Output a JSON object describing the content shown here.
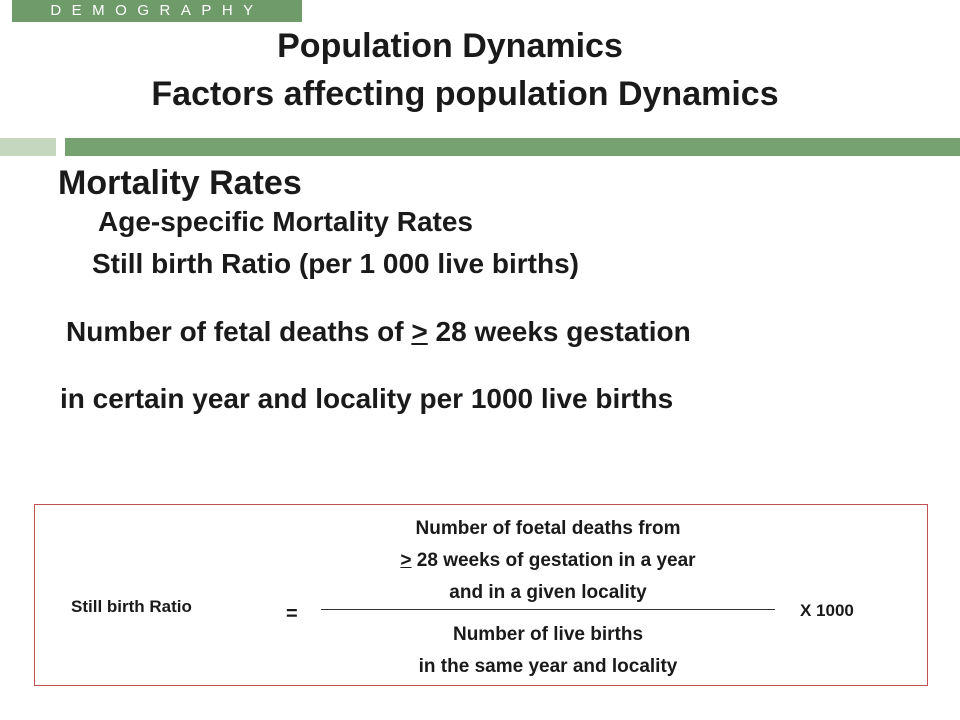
{
  "badge": "DEMOGRAPHY",
  "title": {
    "line1": "Population Dynamics",
    "line2": "Factors affecting population Dynamics"
  },
  "headings": {
    "mortality": "Mortality Rates",
    "age_specific": "Age-specific Mortality Rates",
    "still_birth": "Still birth  Ratio (per 1 000 live births)"
  },
  "definition": {
    "line1_pre": "Number of fetal deaths of ",
    "line1_sym": ">",
    "line1_post": " 28 weeks  gestation",
    "line2": "in certain year and locality per 1000 live births"
  },
  "formula": {
    "label": "Still birth Ratio",
    "equals": "=",
    "numerator_l1": "Number of foetal deaths from",
    "numerator_sym": ">",
    "numerator_l2_post": " 28 weeks of gestation  in a year",
    "numerator_l3": "and  in a given locality",
    "denominator_l1": "Number of live births",
    "denominator_l2": "in the same year and locality",
    "multiplier": "X 1000"
  }
}
